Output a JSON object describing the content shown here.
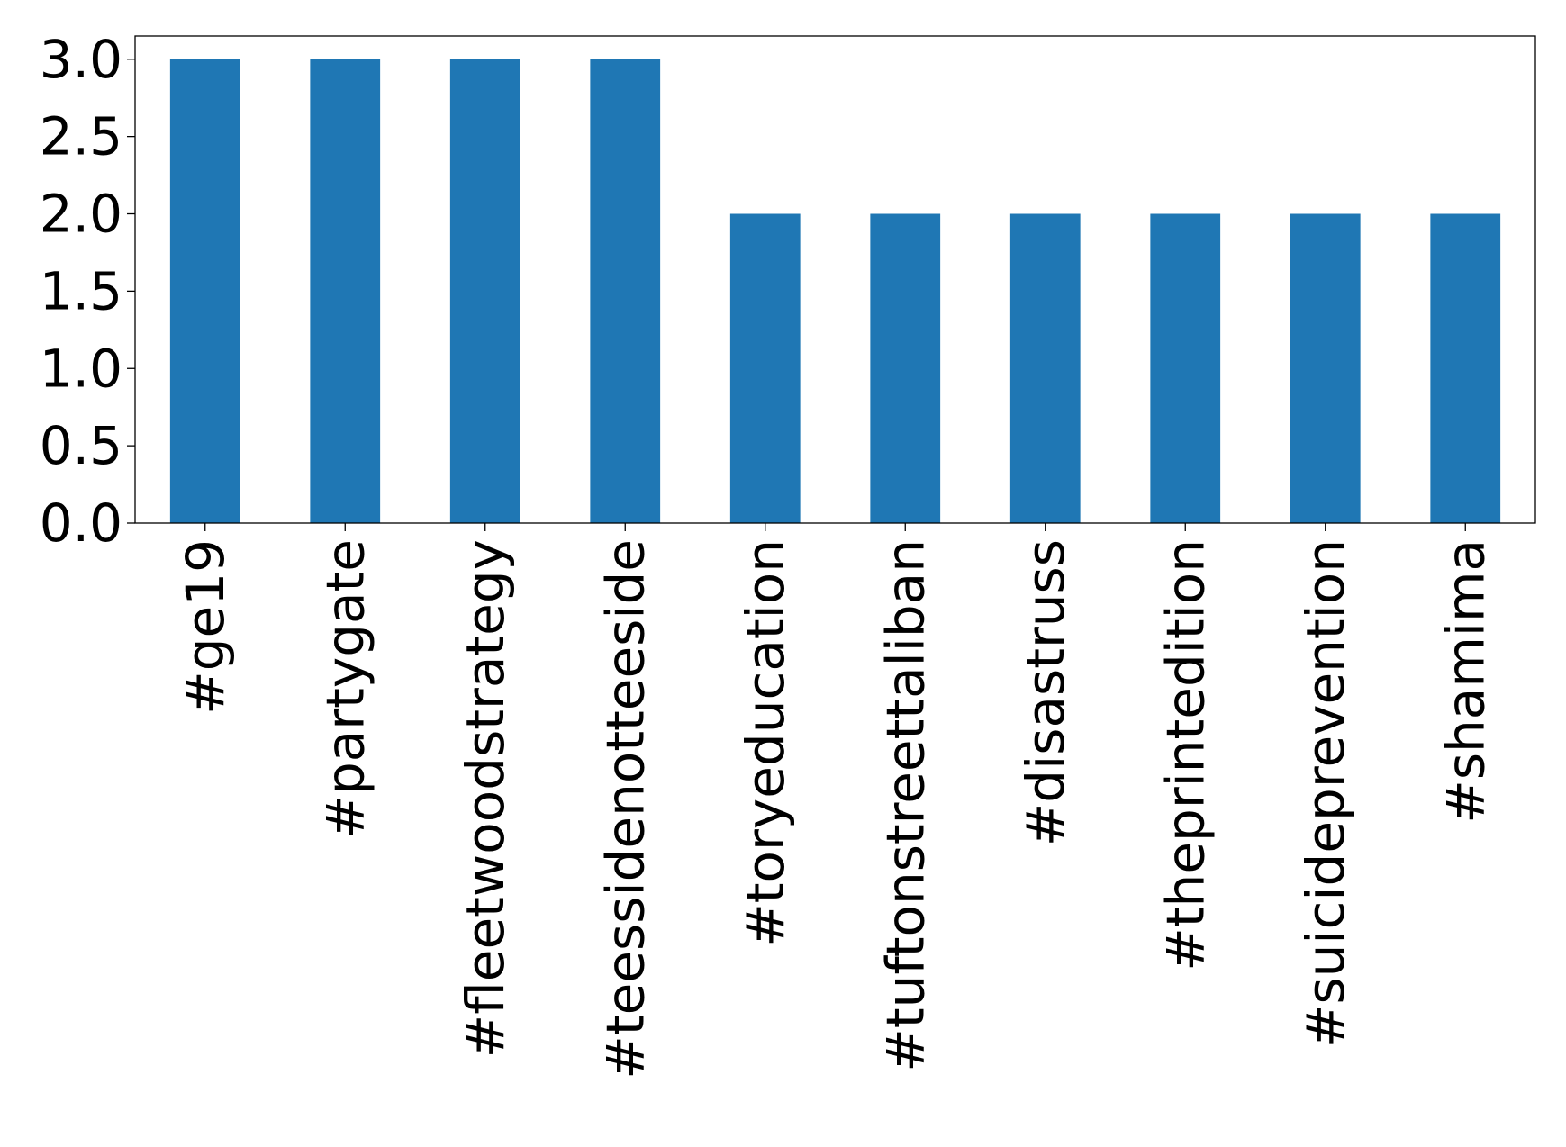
{
  "chart_data": {
    "type": "bar",
    "categories": [
      "#ge19",
      "#partygate",
      "#fleetwoodstrategy",
      "#teessidenotteeside",
      "#toryeducation",
      "#tuftonstreettaliban",
      "#disastruss",
      "#theprintedition",
      "#suicideprevention",
      "#shamima"
    ],
    "values": [
      3,
      3,
      3,
      3,
      2,
      2,
      2,
      2,
      2,
      2
    ],
    "yticks": [
      "0.0",
      "0.5",
      "1.0",
      "1.5",
      "2.0",
      "2.5",
      "3.0"
    ],
    "ylim": [
      0,
      3.15
    ],
    "title": "",
    "xlabel": "",
    "ylabel": "",
    "grid": false,
    "bar_color": "#1f77b4"
  }
}
